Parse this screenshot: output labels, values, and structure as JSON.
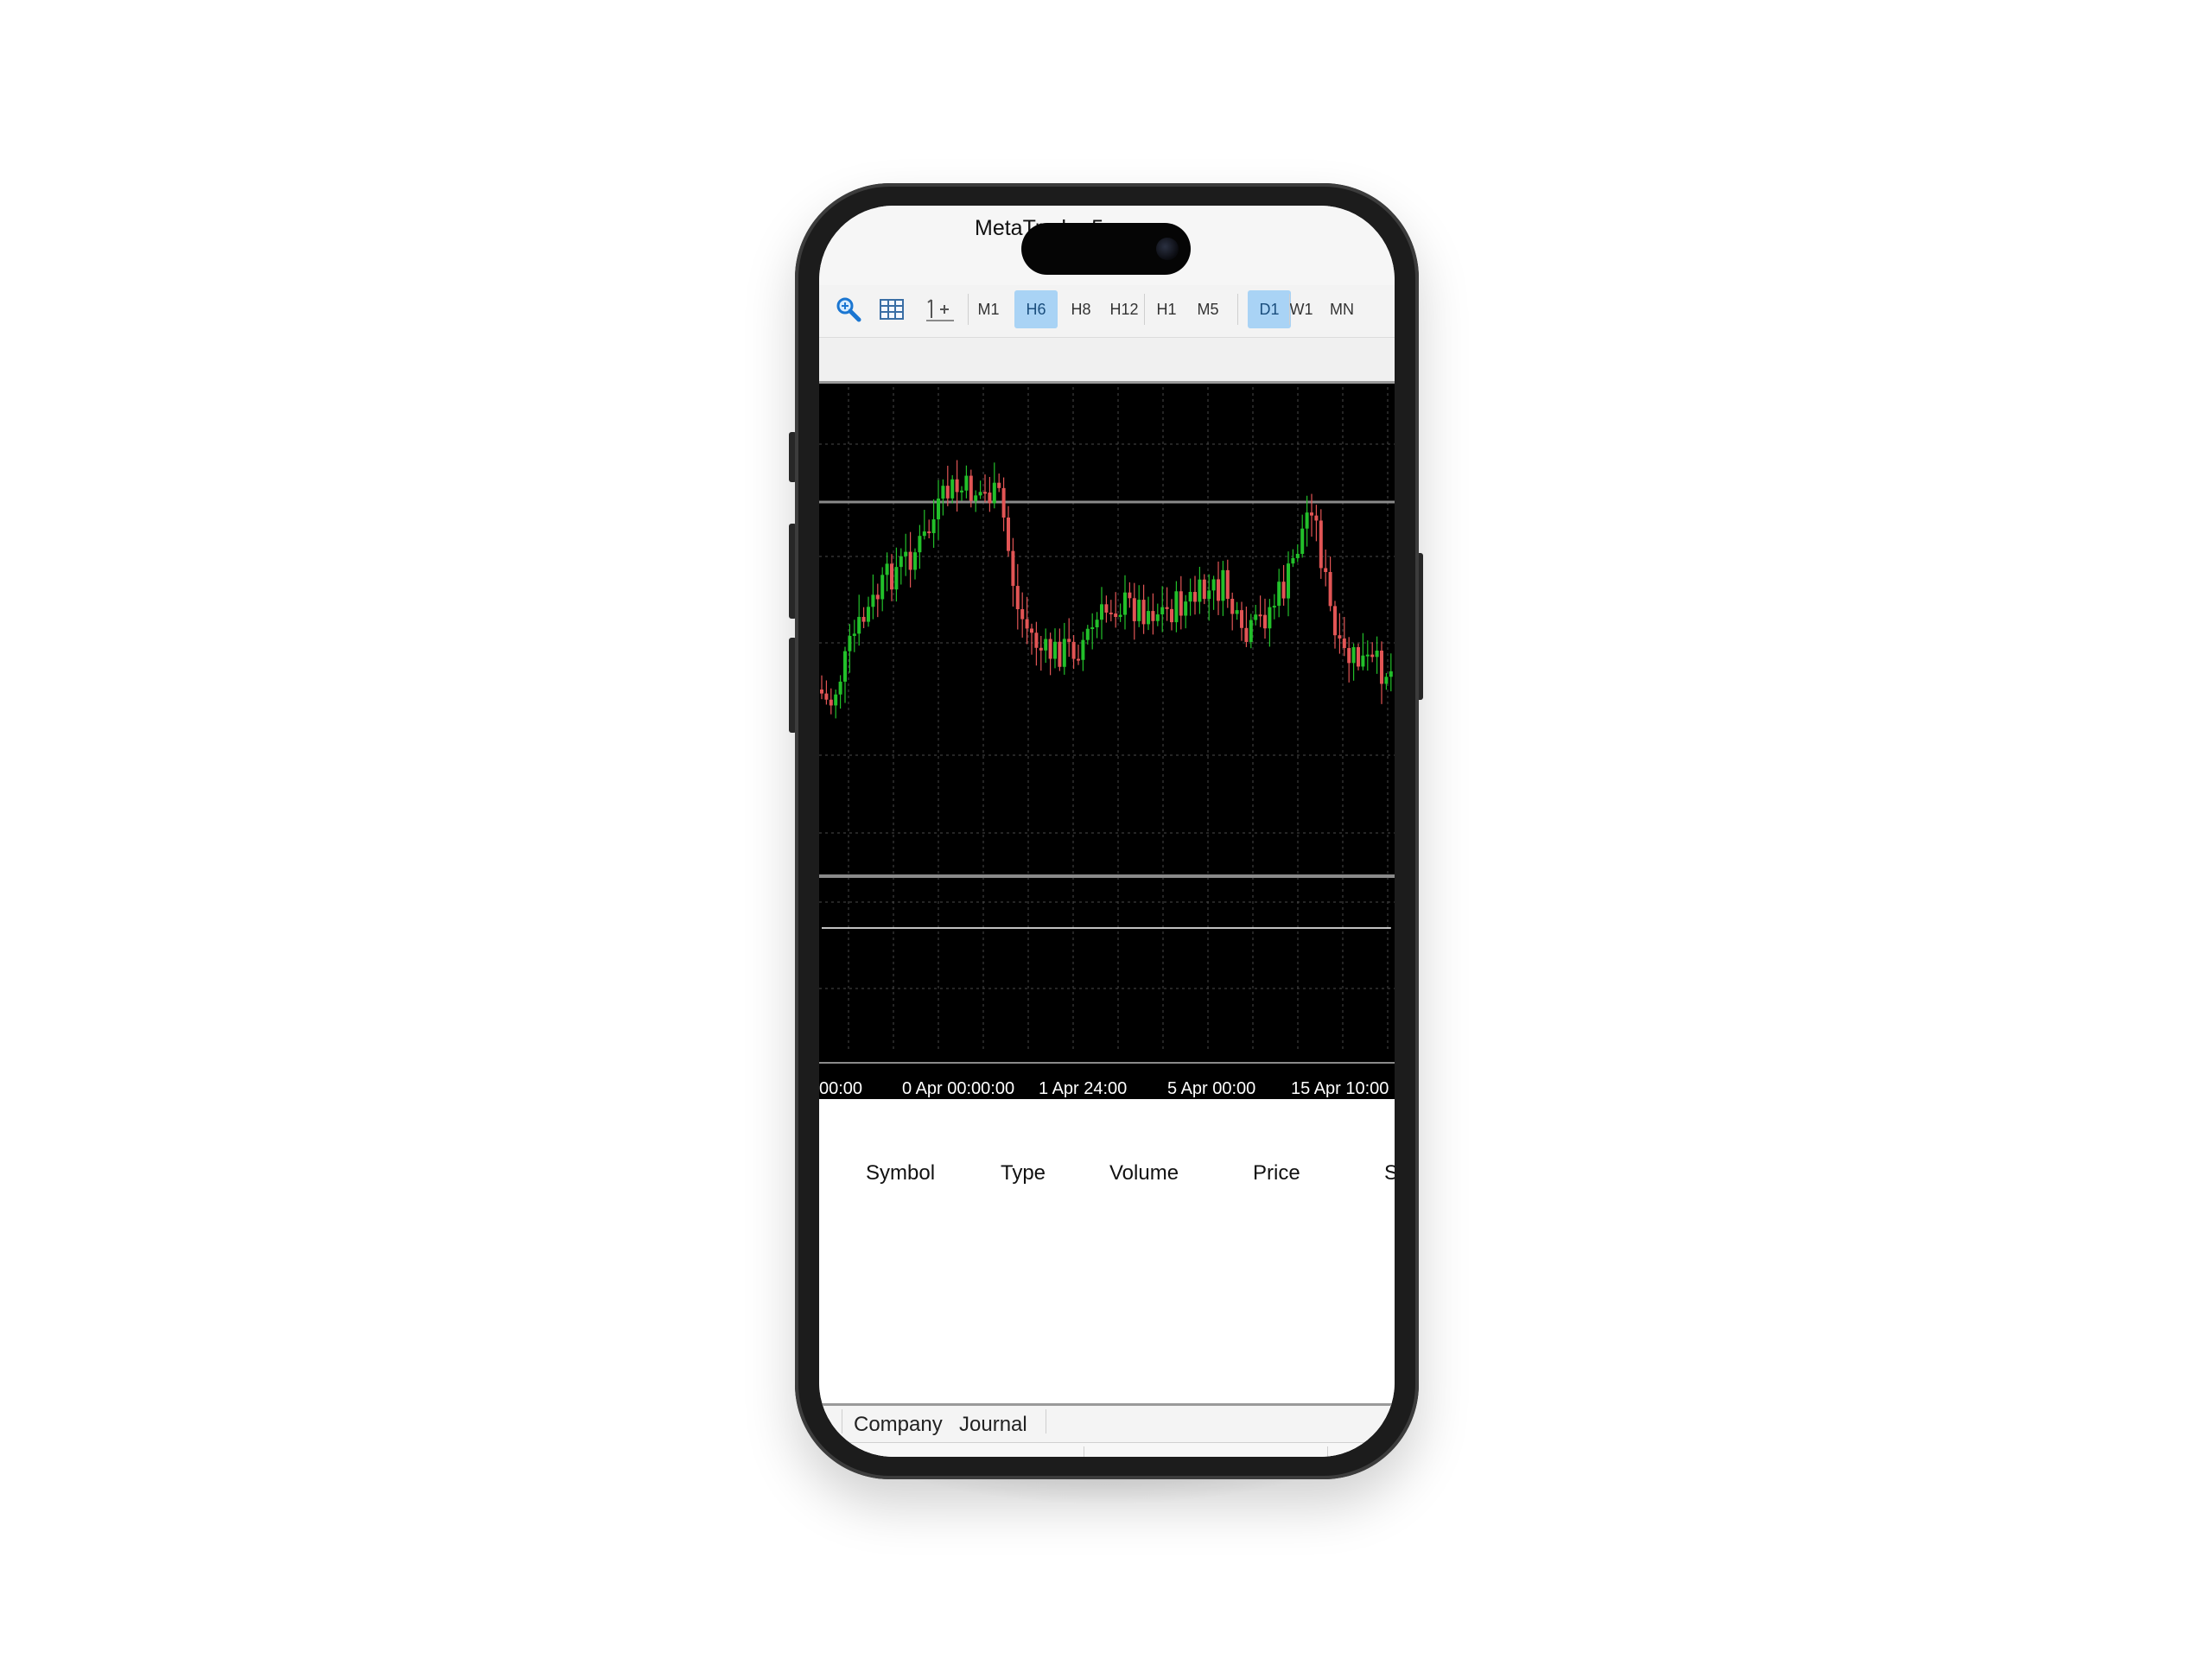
{
  "app": {
    "title": "MetaTrader 5"
  },
  "toolbar": {
    "timeframes": [
      {
        "label": "M1",
        "active": false
      },
      {
        "label": "H6",
        "active": true
      },
      {
        "label": "H8",
        "active": false
      },
      {
        "label": "H12",
        "active": false
      },
      {
        "label": "H1",
        "active": false
      },
      {
        "label": "M5",
        "active": false
      },
      {
        "label": "D1",
        "active": true
      },
      {
        "label": "W1",
        "active": false
      },
      {
        "label": "MN",
        "active": false
      }
    ]
  },
  "chart": {
    "time_labels": [
      "00:00",
      "0 Apr 00:00:00",
      "1 Apr 24:00",
      "5 Apr 00:00",
      "15 Apr 10:00"
    ],
    "colors": {
      "bull": "#22c02a",
      "bear": "#e25555",
      "grid": "#4a4a4a",
      "indicator": "#ffffff",
      "background": "#000000"
    }
  },
  "trade_table": {
    "columns": [
      "Symbol",
      "Type",
      "Volume",
      "Price",
      "S"
    ]
  },
  "bottom_tabs": [
    "y",
    "Company",
    "Journal"
  ]
}
